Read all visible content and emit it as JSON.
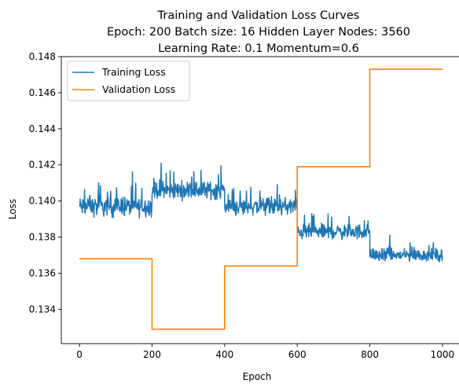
{
  "chart_data": {
    "type": "line",
    "title_lines": [
      "Training and Validation Loss Curves",
      "Epoch: 200 Batch size: 16 Hidden Layer Nodes: 3560",
      "Learning Rate: 0.1   Momentum=0.6"
    ],
    "xlabel": "Epoch",
    "ylabel": "Loss",
    "xlim": [
      -50,
      1050
    ],
    "ylim": [
      0.1321,
      0.148
    ],
    "xticks": [
      0,
      200,
      400,
      600,
      800,
      1000
    ],
    "yticks": [
      0.134,
      0.136,
      0.138,
      0.14,
      0.142,
      0.144,
      0.146,
      0.148
    ],
    "grid": false,
    "legend_position": "upper-left",
    "series": [
      {
        "name": "Training Loss",
        "color": "#1f77b4",
        "style": "noisy-line",
        "segments": [
          {
            "x_start": 0,
            "x_end": 200,
            "mean": 0.1397,
            "spread": 0.0008,
            "peaks": [
              {
                "x": 28,
                "y": 0.1403
              },
              {
                "x": 120,
                "y": 0.1402
              },
              {
                "x": 155,
                "y": 0.141
              }
            ]
          },
          {
            "x_start": 200,
            "x_end": 400,
            "mean": 0.1406,
            "spread": 0.0007,
            "peaks": [
              {
                "x": 225,
                "y": 0.1421
              },
              {
                "x": 260,
                "y": 0.1416
              },
              {
                "x": 335,
                "y": 0.1417
              }
            ]
          },
          {
            "x_start": 400,
            "x_end": 600,
            "mean": 0.1397,
            "spread": 0.0007,
            "peaks": [
              {
                "x": 425,
                "y": 0.1407
              },
              {
                "x": 545,
                "y": 0.1409
              },
              {
                "x": 595,
                "y": 0.1406
              }
            ]
          },
          {
            "x_start": 600,
            "x_end": 800,
            "mean": 0.1383,
            "spread": 0.0006,
            "peaks": [
              {
                "x": 640,
                "y": 0.1393
              },
              {
                "x": 695,
                "y": 0.1391
              }
            ]
          },
          {
            "x_start": 800,
            "x_end": 1000,
            "mean": 0.137,
            "spread": 0.0005,
            "peaks": [
              {
                "x": 855,
                "y": 0.1381
              },
              {
                "x": 975,
                "y": 0.1377
              }
            ]
          }
        ]
      },
      {
        "name": "Validation Loss",
        "color": "#ff7f0e",
        "style": "step",
        "x": [
          0,
          200,
          200,
          400,
          400,
          600,
          600,
          800,
          800,
          1000
        ],
        "y": [
          0.1368,
          0.1368,
          0.1329,
          0.1329,
          0.1364,
          0.1364,
          0.1419,
          0.1419,
          0.1473,
          0.1473
        ]
      }
    ]
  }
}
